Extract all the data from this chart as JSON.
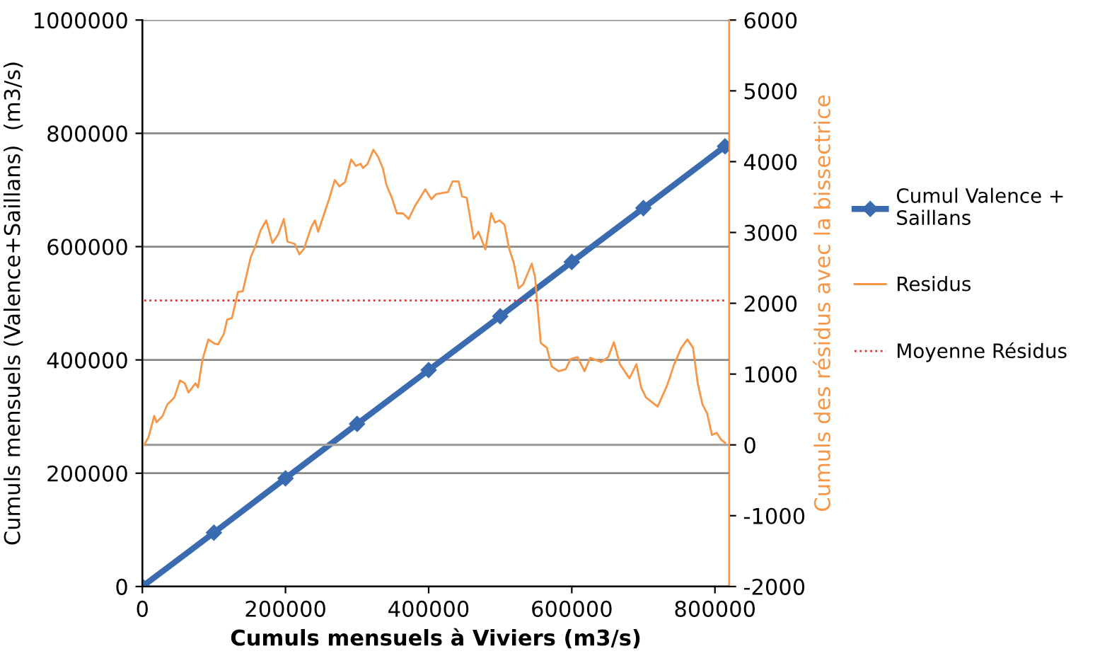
{
  "chart_data": {
    "type": "line",
    "xlabel": "Cumuls mensuels à Viviers (m3/s)",
    "ylabel": "Cumuls mensuels (Valence+Saillans)  (m3/s)",
    "y2label": "Cumuls des résidus avec la bissectrice",
    "xlim": [
      0,
      820000
    ],
    "xticks": [
      0,
      200000,
      400000,
      600000,
      800000
    ],
    "ylim": [
      0,
      1000000
    ],
    "yticks": [
      0,
      200000,
      400000,
      600000,
      800000,
      1000000
    ],
    "y2lim": [
      -2000,
      6000
    ],
    "y2ticks": [
      -2000,
      -1000,
      0,
      1000,
      2000,
      3000,
      4000,
      5000,
      6000
    ],
    "grid": "y",
    "legend": "right",
    "ref_lines": [
      {
        "axis": "y2",
        "value": 0,
        "color": "#a0a0a0"
      }
    ],
    "series": [
      {
        "name": "Cumul Valence +\nSaillans",
        "color": "#3a6bb0",
        "marker": "diamond",
        "x": [
          0,
          100000,
          200000,
          300000,
          400000,
          500000,
          600000,
          700000,
          814000
        ],
        "values": [
          0,
          95000,
          191000,
          287000,
          382000,
          477000,
          573000,
          668000,
          777000
        ]
      },
      {
        "name": "Residus",
        "color": "#f79646",
        "axis": "y2",
        "marker": "none",
        "x": [
          2600,
          8700,
          16600,
          19800,
          28300,
          34800,
          44700,
          52600,
          59300,
          64500,
          74300,
          77700,
          84200,
          92200,
          100800,
          106000,
          113900,
          118600,
          125100,
          133600,
          140300,
          151400,
          158100,
          165200,
          173100,
          181800,
          189700,
          197700,
          202800,
          212700,
          219400,
          225900,
          235800,
          241100,
          245700,
          252200,
          260900,
          268800,
          275300,
          283200,
          291700,
          298400,
          304900,
          308300,
          314800,
          322700,
          329300,
          335900,
          341100,
          347800,
          355700,
          364200,
          372100,
          380700,
          395300,
          403800,
          410300,
          426900,
          433400,
          441900,
          446600,
          453200,
          463000,
          469600,
          479400,
          487400,
          492700,
          499200,
          505900,
          512500,
          519000,
          525700,
          532200,
          544100,
          548700,
          552000,
          556600,
          565200,
          571800,
          581700,
          591600,
          598100,
          608000,
          617800,
          625700,
          641000,
          650900,
          658800,
          667200,
          680500,
          690300,
          696900,
          703600,
          719900,
          733200,
          743100,
          752900,
          761500,
          769400,
          775900,
          782600,
          789200,
          795800,
          802400,
          809000,
          814300
        ],
        "values": [
          0,
          110,
          410,
          320,
          410,
          570,
          670,
          910,
          870,
          740,
          870,
          810,
          1210,
          1490,
          1430,
          1420,
          1570,
          1770,
          1790,
          2160,
          2170,
          2650,
          2810,
          3030,
          3170,
          2850,
          2970,
          3190,
          2870,
          2840,
          2690,
          2770,
          3070,
          3170,
          3010,
          3210,
          3470,
          3740,
          3650,
          3710,
          4030,
          3940,
          3970,
          3910,
          3970,
          4170,
          4070,
          3910,
          3670,
          3510,
          3270,
          3270,
          3190,
          3370,
          3610,
          3470,
          3540,
          3570,
          3720,
          3720,
          3510,
          3490,
          2910,
          3010,
          2760,
          3270,
          3140,
          3170,
          3110,
          2770,
          2570,
          2210,
          2270,
          2560,
          2370,
          1970,
          1440,
          1370,
          1110,
          1040,
          1070,
          1210,
          1240,
          1040,
          1230,
          1170,
          1240,
          1450,
          1140,
          940,
          1140,
          810,
          670,
          540,
          840,
          1140,
          1370,
          1490,
          1370,
          870,
          570,
          440,
          140,
          170,
          70,
          30
        ]
      },
      {
        "name": "Moyenne Résidus",
        "color": "#e03030",
        "axis": "y2",
        "marker": "none",
        "line_style": "dotted",
        "x": [
          2600,
          814300
        ],
        "values": [
          2040,
          2040
        ]
      }
    ]
  }
}
